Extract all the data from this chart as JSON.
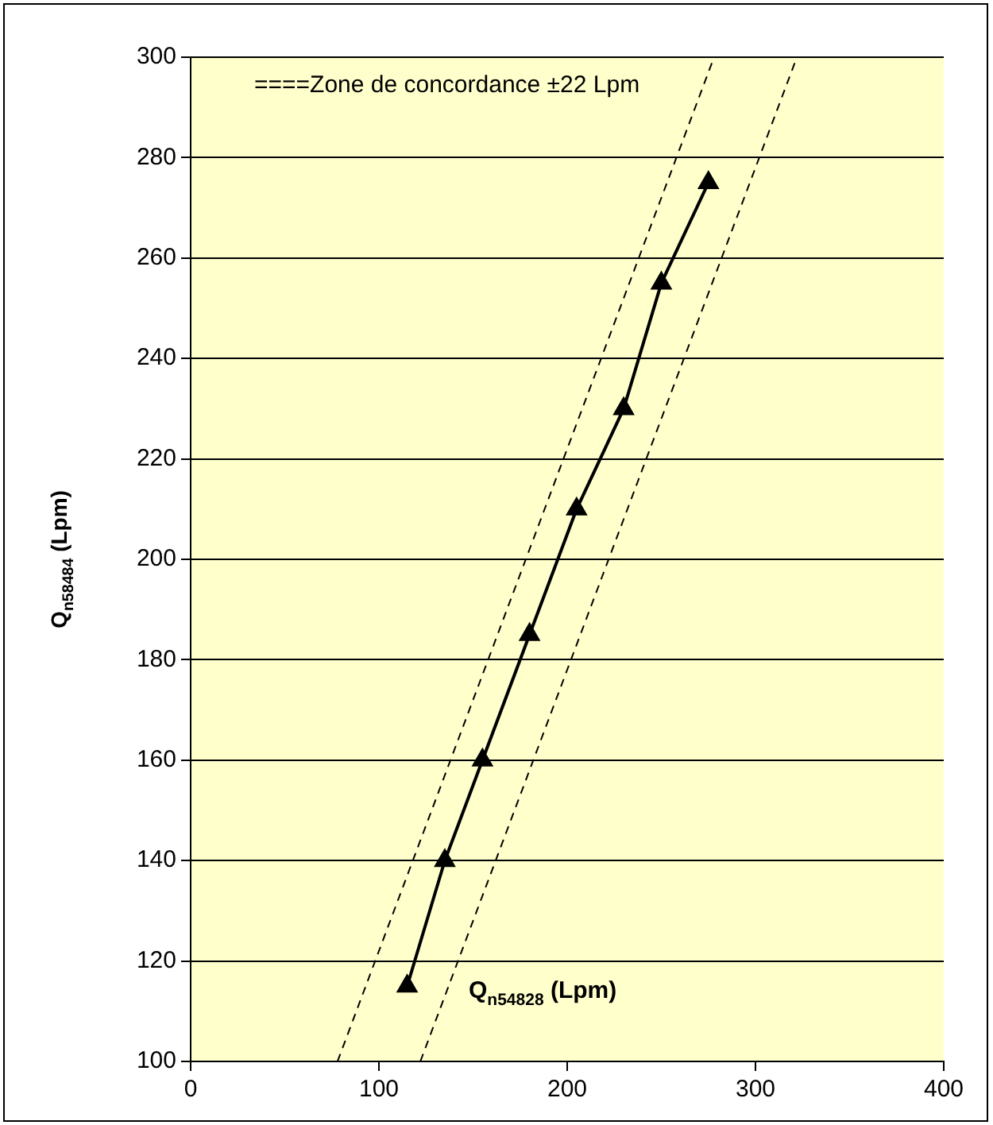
{
  "chart_data": {
    "type": "line",
    "xlabel": "Q$_{n54828}$ (Lpm)",
    "ylabel": "Q$_{n58484}$ (Lpm)",
    "annotations": [
      "====Zone de concordance ±22 Lpm"
    ],
    "xlim": [
      0,
      400
    ],
    "xticks": [
      0,
      100,
      200,
      300,
      400
    ],
    "ylim": [
      100,
      300
    ],
    "yticks": [
      100,
      120,
      140,
      160,
      180,
      200,
      220,
      240,
      260,
      280,
      300
    ],
    "grid": "y",
    "legend": false,
    "series": [
      {
        "x": [
          115,
          135,
          155,
          180,
          205,
          230,
          250,
          275
        ],
        "values": [
          115,
          140,
          160,
          185,
          210,
          230,
          255,
          275
        ],
        "color": "#000000",
        "marker": "triangle",
        "line_style": "solid"
      },
      {
        "x": [
          78,
          278
        ],
        "values": [
          100,
          300
        ],
        "color": "#000000",
        "marker": "none",
        "line_style": "dashed"
      },
      {
        "x": [
          122,
          322
        ],
        "values": [
          100,
          300
        ],
        "color": "#000000",
        "marker": "none",
        "line_style": "dashed"
      }
    ]
  }
}
